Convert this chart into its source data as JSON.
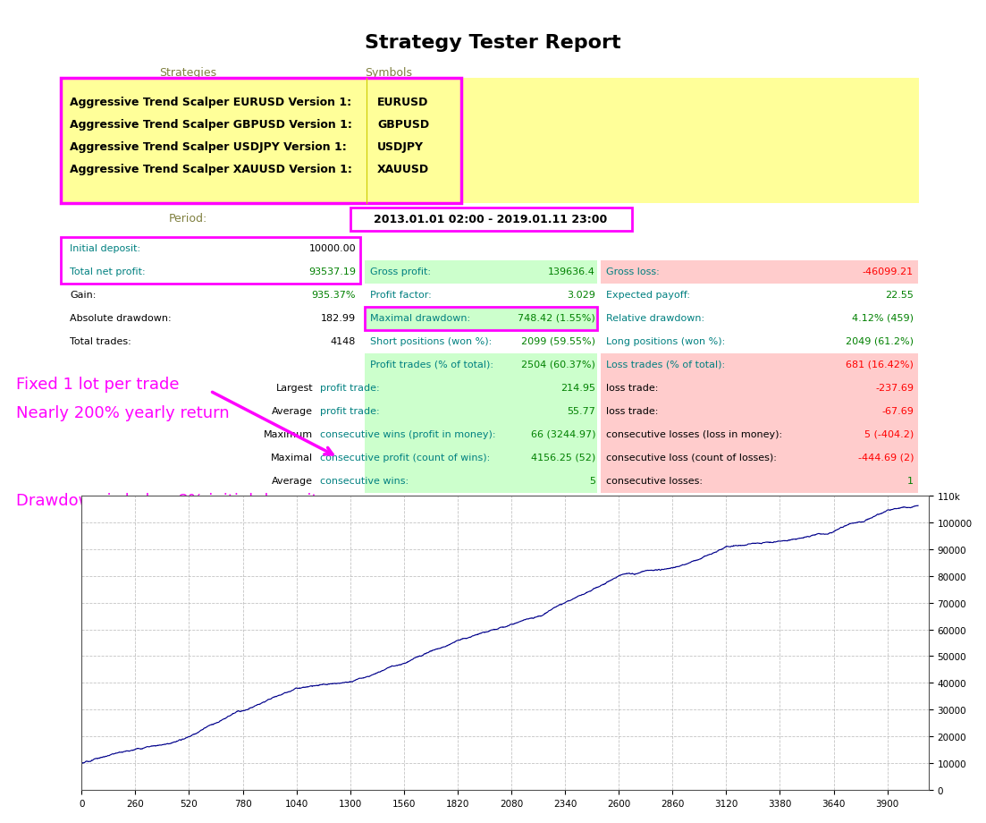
{
  "title": "Strategy Tester Report",
  "strategies_header": "Strategies",
  "symbols_header": "Symbols",
  "strategies": [
    {
      "name": "Aggressive Trend Scalper EURUSD Version 1:",
      "symbol": "EURUSD"
    },
    {
      "name": "Aggressive Trend Scalper GBPUSD Version 1:",
      "symbol": "GBPUSD"
    },
    {
      "name": "Aggressive Trend Scalper USDJPY Version 1:",
      "symbol": "USDJPY"
    },
    {
      "name": "Aggressive Trend Scalper XAUUSD Version 1:",
      "symbol": "XAUUSD"
    }
  ],
  "period_label": "Period:",
  "period_value": "2013.01.01 02:00 - 2019.01.11 23:00",
  "stats": {
    "initial_deposit_label": "Initial deposit:",
    "initial_deposit_value": "10000.00",
    "total_net_profit_label": "Total net profit:",
    "total_net_profit_value": "93537.19",
    "gross_profit_label": "Gross profit:",
    "gross_profit_value": "139636.4",
    "gross_loss_label": "Gross loss:",
    "gross_loss_value": "-46099.21",
    "gain_label": "Gain:",
    "gain_value": "935.37%",
    "profit_factor_label": "Profit factor:",
    "profit_factor_value": "3.029",
    "expected_payoff_label": "Expected payoff:",
    "expected_payoff_value": "22.55",
    "absolute_drawdown_label": "Absolute drawdown:",
    "absolute_drawdown_value": "182.99",
    "maximal_drawdown_label": "Maximal drawdown:",
    "maximal_drawdown_value": "748.42 (1.55%)",
    "relative_drawdown_label": "Relative drawdown:",
    "relative_drawdown_value": "4.12% (459)",
    "total_trades_label": "Total trades:",
    "total_trades_value": "4148",
    "short_positions_label": "Short positions (won %):",
    "short_positions_value": "2099 (59.55%)",
    "long_positions_label": "Long positions (won %):",
    "long_positions_value": "2049 (61.2%)",
    "profit_trades_label": "Profit trades (% of total):",
    "profit_trades_value": "2504 (60.37%)",
    "loss_trades_label": "Loss trades (% of total):",
    "loss_trades_value": "681 (16.42%)",
    "largest_prefix": "Largest",
    "largest_profit_label": "profit trade:",
    "largest_profit_value": "214.95",
    "largest_loss_label": "loss trade:",
    "largest_loss_value": "-237.69",
    "average_prefix": "Average",
    "average_profit_label": "profit trade:",
    "average_profit_value": "55.77",
    "average_loss_label": "loss trade:",
    "average_loss_value": "-67.69",
    "maximum_prefix": "Maximum",
    "max_consec_wins_label": "consecutive wins (profit in money):",
    "max_consec_wins_value": "66 (3244.97)",
    "max_consec_losses_label": "consecutive losses (loss in money):",
    "max_consec_losses_value": "5 (-404.2)",
    "maximal_prefix": "Maximal",
    "maximal_consec_profit_label": "consecutive profit (count of wins):",
    "maximal_consec_profit_value": "4156.25 (52)",
    "maximal_consec_loss_label": "consecutive loss (count of losses):",
    "maximal_consec_loss_value": "-444.69 (2)",
    "average2_prefix": "Average",
    "avg_consec_wins_label": "consecutive wins:",
    "avg_consec_wins_value": "5",
    "avg_consec_losses_label": "consecutive losses:",
    "avg_consec_losses_value": "1"
  },
  "annotations": [
    {
      "text": "Fixed 1 lot per trade",
      "color": "#FF00FF",
      "fontsize": 13
    },
    {
      "text": "Nearly 200% yearly return",
      "color": "#FF00FF",
      "fontsize": 13
    },
    {
      "text": "Drawdown is below 8% initial deposit",
      "color": "#FF00FF",
      "fontsize": 13
    }
  ],
  "chart": {
    "x_ticks": [
      0,
      260,
      520,
      780,
      1040,
      1300,
      1560,
      1820,
      2080,
      2340,
      2600,
      2860,
      3120,
      3380,
      3640,
      3900
    ],
    "y_ticks": [
      0,
      10000,
      20000,
      30000,
      40000,
      50000,
      60000,
      70000,
      80000,
      90000,
      100000,
      110000
    ],
    "y_tick_labels": [
      "0",
      "10000",
      "20000",
      "30000",
      "40000",
      "50000",
      "60000",
      "70000",
      "80000",
      "90000",
      "100000",
      "110k"
    ],
    "line_color": "#00008B",
    "grid_color": "#AAAAAA"
  },
  "colors": {
    "yellow_bg": "#FFFF99",
    "green_bg": "#CCFFCC",
    "red_bg": "#FFCCCC",
    "pink_border": "#FF00FF",
    "text_green": "#008000",
    "text_red": "#FF0000",
    "text_teal": "#008080",
    "header_text": "#808040"
  }
}
